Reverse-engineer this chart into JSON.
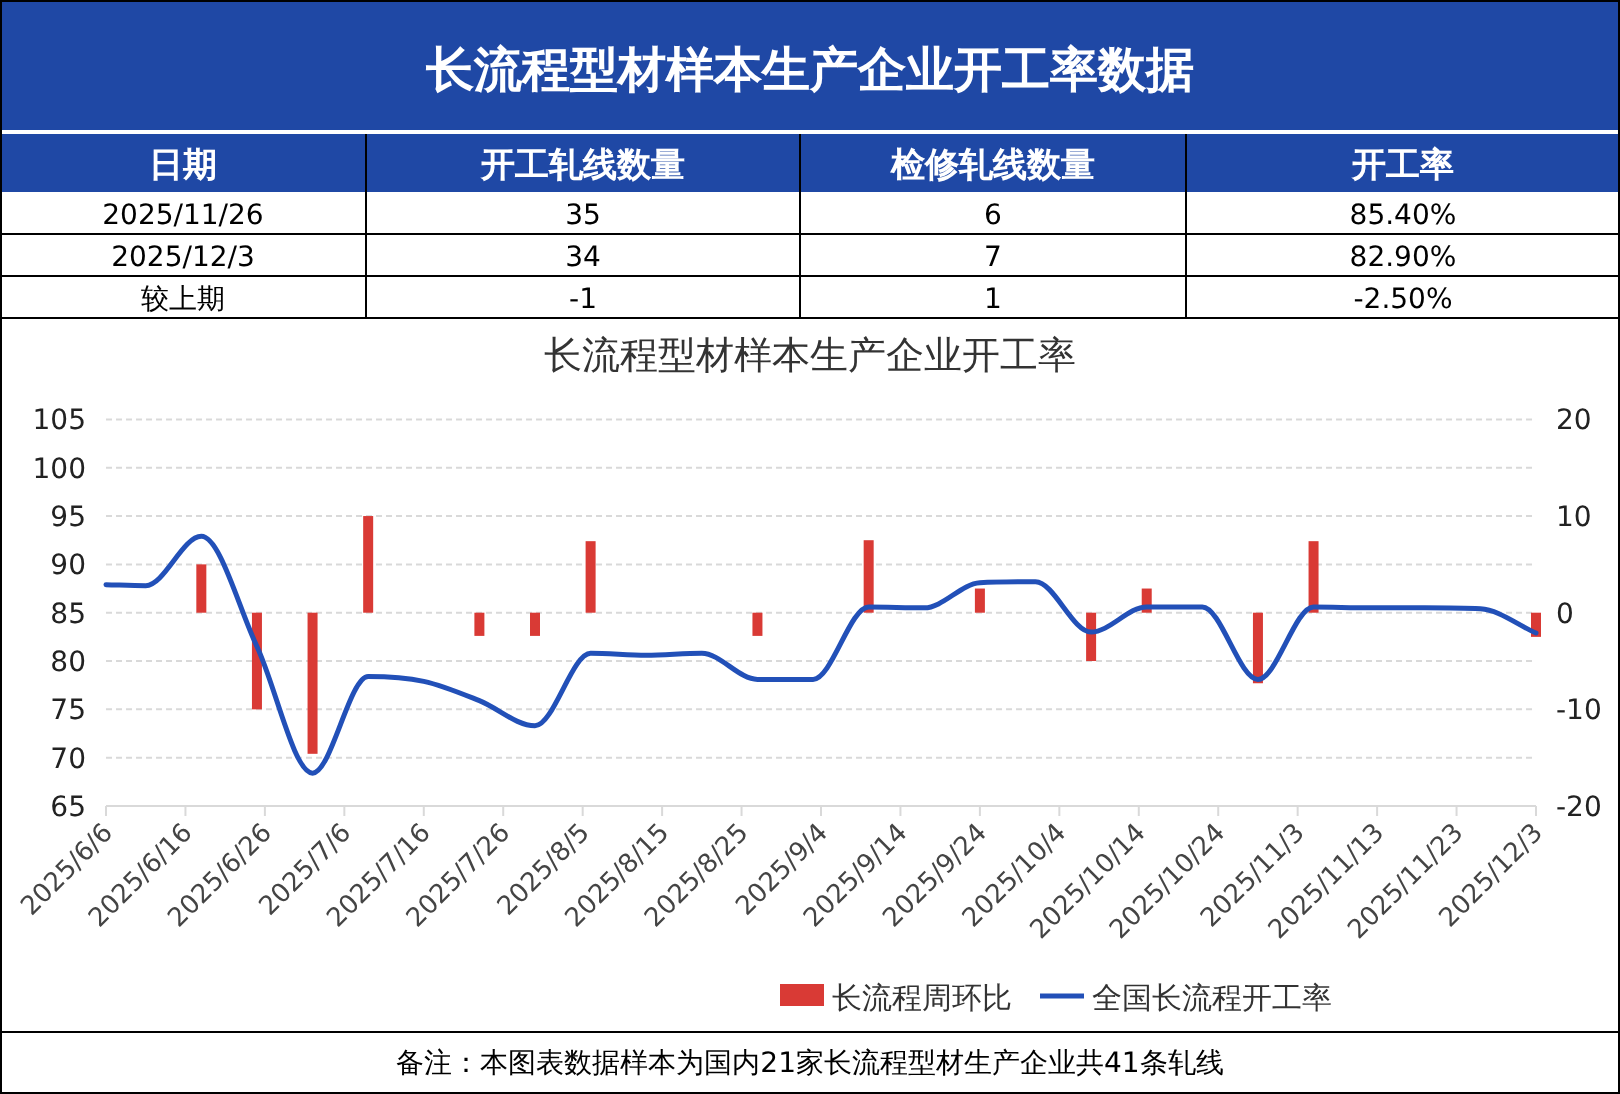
{
  "chart_data": [
    {
      "type": "other",
      "title": "长流程型材样本生产企业开工率数据",
      "categories": [
        "日期",
        "开工轧线数量",
        "检修轧线数量",
        "开工率"
      ],
      "annotations": [
        "2025/11/26",
        "35",
        "6",
        "85.40%",
        "2025/12/3",
        "34",
        "7",
        "82.90%",
        "较上期",
        "-1",
        "1",
        "-2.50%"
      ]
    },
    {
      "type": "bar",
      "title": "长流程型材样本生产企业开工率",
      "x": [
        "2025-06-06",
        "2025-06-11",
        "2025-06-18",
        "2025-06-25",
        "2025-07-02",
        "2025-07-09",
        "2025-07-16",
        "2025-07-23",
        "2025-07-30",
        "2025-08-06",
        "2025-08-13",
        "2025-08-20",
        "2025-08-27",
        "2025-09-03",
        "2025-09-10",
        "2025-09-17",
        "2025-09-24",
        "2025-10-01",
        "2025-10-08",
        "2025-10-15",
        "2025-10-22",
        "2025-10-29",
        "2025-11-05",
        "2025-11-12",
        "2025-11-19",
        "2025-11-26",
        "2025-12-03"
      ],
      "series": [
        {
          "name": "长流程周环比",
          "type": "bar",
          "axis": "y2",
          "color": "#d93a35",
          "values": [
            0,
            0,
            5,
            -10,
            -14.6,
            10,
            0,
            -2.4,
            -2.4,
            7.4,
            0,
            0,
            -2.4,
            0,
            7.5,
            0,
            2.5,
            0,
            -5,
            2.5,
            0,
            -7.3,
            7.4,
            0,
            0,
            0,
            -2.5
          ]
        },
        {
          "name": "全国长流程开工率",
          "type": "line",
          "color": "#2250b8",
          "values": [
            87.9,
            87.8,
            92.9,
            81.5,
            68.4,
            78.4,
            77.9,
            75.9,
            73.3,
            80.8,
            80.6,
            80.8,
            78.1,
            78.1,
            85.6,
            85.5,
            88.1,
            88.2,
            83.0,
            85.6,
            85.6,
            78.1,
            85.6,
            85.5,
            85.5,
            85.4,
            82.9
          ]
        }
      ],
      "xlim": [
        "2025-06-06",
        "2025-12-03"
      ],
      "xticks": [
        {
          "value": "2025-06-06",
          "label": "2025/6/6"
        },
        {
          "value": "2025-06-16",
          "label": "2025/6/16"
        },
        {
          "value": "2025-06-26",
          "label": "2025/6/26"
        },
        {
          "value": "2025-07-06",
          "label": "2025/7/6"
        },
        {
          "value": "2025-07-16",
          "label": "2025/7/16"
        },
        {
          "value": "2025-07-26",
          "label": "2025/7/26"
        },
        {
          "value": "2025-08-05",
          "label": "2025/8/5"
        },
        {
          "value": "2025-08-15",
          "label": "2025/8/15"
        },
        {
          "value": "2025-08-25",
          "label": "2025/8/25"
        },
        {
          "value": "2025-09-04",
          "label": "2025/9/4"
        },
        {
          "value": "2025-09-14",
          "label": "2025/9/14"
        },
        {
          "value": "2025-09-24",
          "label": "2025/9/24"
        },
        {
          "value": "2025-10-04",
          "label": "2025/10/4"
        },
        {
          "value": "2025-10-14",
          "label": "2025/10/14"
        },
        {
          "value": "2025-10-24",
          "label": "2025/10/24"
        },
        {
          "value": "2025-11-03",
          "label": "2025/11/3"
        },
        {
          "value": "2025-11-13",
          "label": "2025/11/13"
        },
        {
          "value": "2025-11-23",
          "label": "2025/11/23"
        },
        {
          "value": "2025-12-03",
          "label": "2025/12/3"
        }
      ],
      "ylim": [
        65,
        105
      ],
      "yticks": [
        65,
        70,
        75,
        80,
        85,
        90,
        95,
        100,
        105
      ],
      "y2lim": [
        -20,
        20
      ],
      "y2ticks": [
        -20,
        -10,
        0,
        10,
        20
      ],
      "grid": "y",
      "legend": "bottom",
      "annotations": [
        "备注：本图表数据样本为国内21家长流程型材生产企业共41条轧线"
      ]
    }
  ]
}
